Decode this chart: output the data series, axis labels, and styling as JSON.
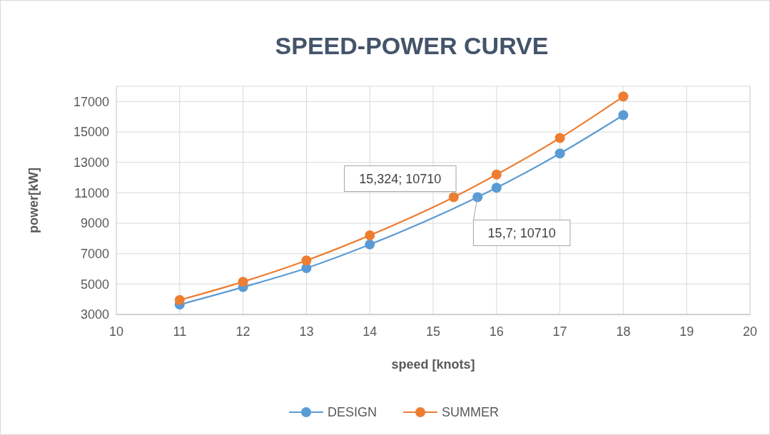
{
  "chart_data": {
    "type": "line",
    "title": "SPEED-POWER CURVE",
    "xlabel": "speed [knots]",
    "ylabel": "power[kW]",
    "xlim": [
      10,
      20
    ],
    "xticks": [
      10,
      11,
      12,
      13,
      14,
      15,
      16,
      17,
      18,
      19,
      20
    ],
    "ylim": [
      3000,
      18000
    ],
    "yticks": [
      3000,
      5000,
      7000,
      9000,
      11000,
      13000,
      15000,
      17000
    ],
    "grid": true,
    "legend": "bottom",
    "marker": "circle",
    "line_style": "solid",
    "series": [
      {
        "name": "DESIGN",
        "color": "#5b9bd5",
        "x": [
          11,
          12,
          13,
          14,
          15.7,
          16,
          17,
          18
        ],
        "values": [
          3650,
          4800,
          6050,
          7600,
          10710,
          11330,
          13580,
          16100
        ]
      },
      {
        "name": "SUMMER",
        "color": "#ed7d31",
        "x": [
          11,
          12,
          13,
          14,
          15.324,
          16,
          17,
          18
        ],
        "values": [
          3950,
          5150,
          6550,
          8200,
          10710,
          12200,
          14600,
          17330
        ]
      }
    ],
    "annotations": [
      {
        "text": "15,324; 10710",
        "x": 15.324,
        "y": 10710
      },
      {
        "text": "15,7; 10710",
        "x": 15.7,
        "y": 10710
      }
    ]
  }
}
